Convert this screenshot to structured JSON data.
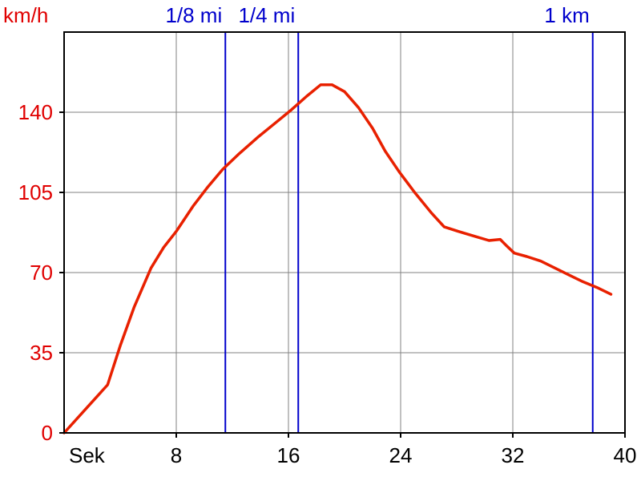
{
  "chart_data": {
    "type": "line",
    "y_unit_label": "km/h",
    "x_unit_label": "Sek",
    "xlim": [
      0,
      40
    ],
    "ylim": [
      0,
      175
    ],
    "grid": true,
    "x_ticks": [
      8,
      16,
      24,
      32,
      40
    ],
    "y_ticks": [
      0,
      35,
      70,
      105,
      140
    ],
    "series": [
      {
        "color": "#e82000",
        "x": [
          0,
          3.1,
          4.0,
          5.0,
          6.2,
          7.1,
          8.0,
          9.2,
          10.2,
          11.3,
          12.5,
          13.8,
          15.0,
          16.2,
          17.3,
          18.3,
          19.1,
          20.0,
          21.0,
          22.0,
          22.9,
          23.9,
          25.0,
          26.2,
          27.1,
          28.1,
          29.2,
          30.3,
          31.1,
          31.5,
          32.1,
          33.0,
          34.0,
          35.0,
          36.0,
          37.0,
          38.0,
          39.0
        ],
        "y": [
          0,
          21,
          38,
          55,
          72,
          81,
          88,
          99,
          107,
          115,
          122,
          129,
          135,
          141,
          147,
          152,
          152,
          149,
          142,
          133,
          123,
          114,
          105,
          96,
          90,
          88,
          86,
          84,
          84.5,
          82,
          78.5,
          77,
          75,
          72,
          69,
          66,
          63.5,
          60.5
        ]
      }
    ],
    "markers": [
      {
        "label": "1/8 mi",
        "x": 11.5,
        "color": "#0000cc"
      },
      {
        "label": "1/4 mi",
        "x": 16.7,
        "color": "#0000cc"
      },
      {
        "label": "1 km",
        "x": 37.7,
        "color": "#0000cc"
      }
    ],
    "colors": {
      "axis_labels": "#e00000",
      "grid": "#808080",
      "axis": "#000000"
    }
  }
}
